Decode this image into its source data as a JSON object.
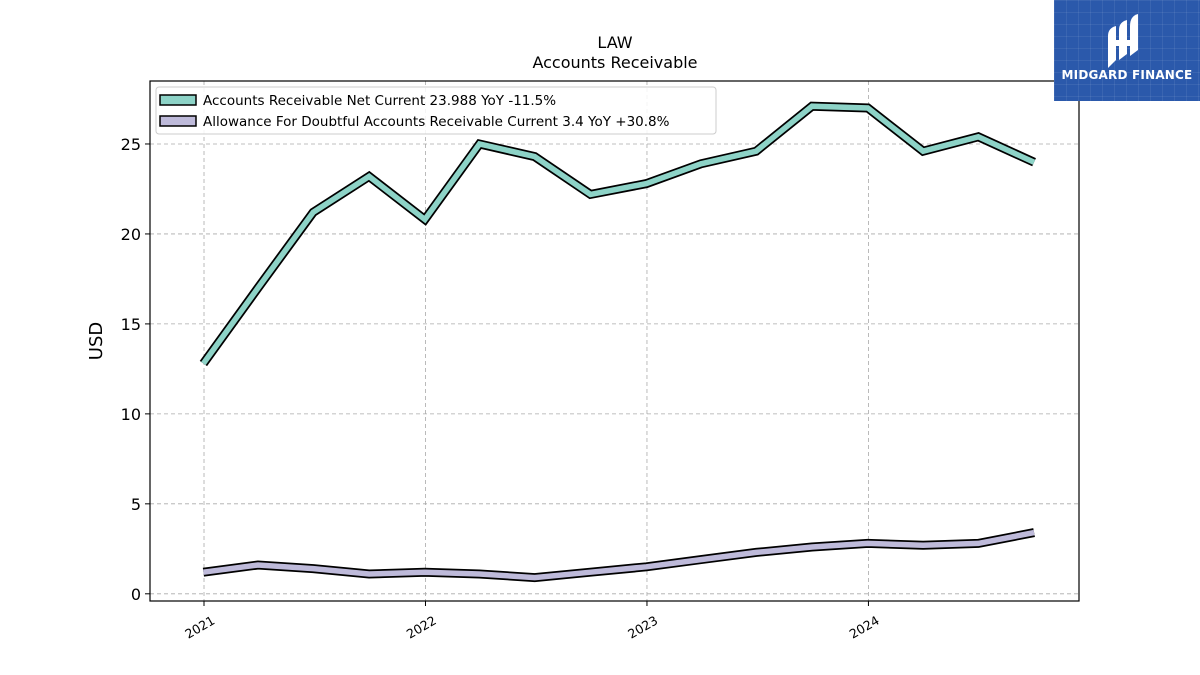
{
  "chart_data": {
    "type": "line",
    "title": "LAW",
    "subtitle": "Accounts Receivable",
    "ylabel": "USD",
    "xlabel": "",
    "ylim": [
      -0.4,
      28.5
    ],
    "yticks": [
      0,
      5,
      10,
      15,
      20,
      25
    ],
    "xlim": [
      "2020-10-04",
      "2024-12-13"
    ],
    "xticks": [
      {
        "date": "2021-01-01",
        "label": "2021"
      },
      {
        "date": "2022-01-01",
        "label": "2022"
      },
      {
        "date": "2023-01-01",
        "label": "2023"
      },
      {
        "date": "2024-01-01",
        "label": "2024"
      }
    ],
    "grid": true,
    "legend_position": "top-left",
    "x": [
      "2020-12-31",
      "2021-03-31",
      "2021-06-30",
      "2021-09-30",
      "2021-12-31",
      "2022-03-31",
      "2022-06-30",
      "2022-09-30",
      "2022-12-31",
      "2023-03-31",
      "2023-06-30",
      "2023-09-30",
      "2023-12-31",
      "2024-03-31",
      "2024-06-30",
      "2024-09-30"
    ],
    "series": [
      {
        "name": "Accounts Receivable Net Current",
        "legend_label": "Accounts Receivable Net Current  23.988 YoY -11.5%",
        "color": "#8dd3c7",
        "values": [
          12.8,
          17.0,
          21.2,
          23.2,
          20.8,
          25.0,
          24.3,
          22.2,
          22.8,
          23.9,
          24.6,
          27.1,
          27.0,
          24.6,
          25.4,
          23.988
        ]
      },
      {
        "name": "Allowance For Doubtful Accounts Receivable Current",
        "legend_label": "Allowance For Doubtful Accounts Receivable Current  3.4 YoY +30.8%",
        "color": "#bebada",
        "values": [
          1.2,
          1.6,
          1.4,
          1.1,
          1.2,
          1.1,
          0.9,
          1.2,
          1.5,
          1.9,
          2.3,
          2.6,
          2.8,
          2.7,
          2.8,
          3.4
        ]
      }
    ]
  },
  "logo": {
    "text": "MIDGARD FINANCE",
    "background": "#2b59ab"
  }
}
